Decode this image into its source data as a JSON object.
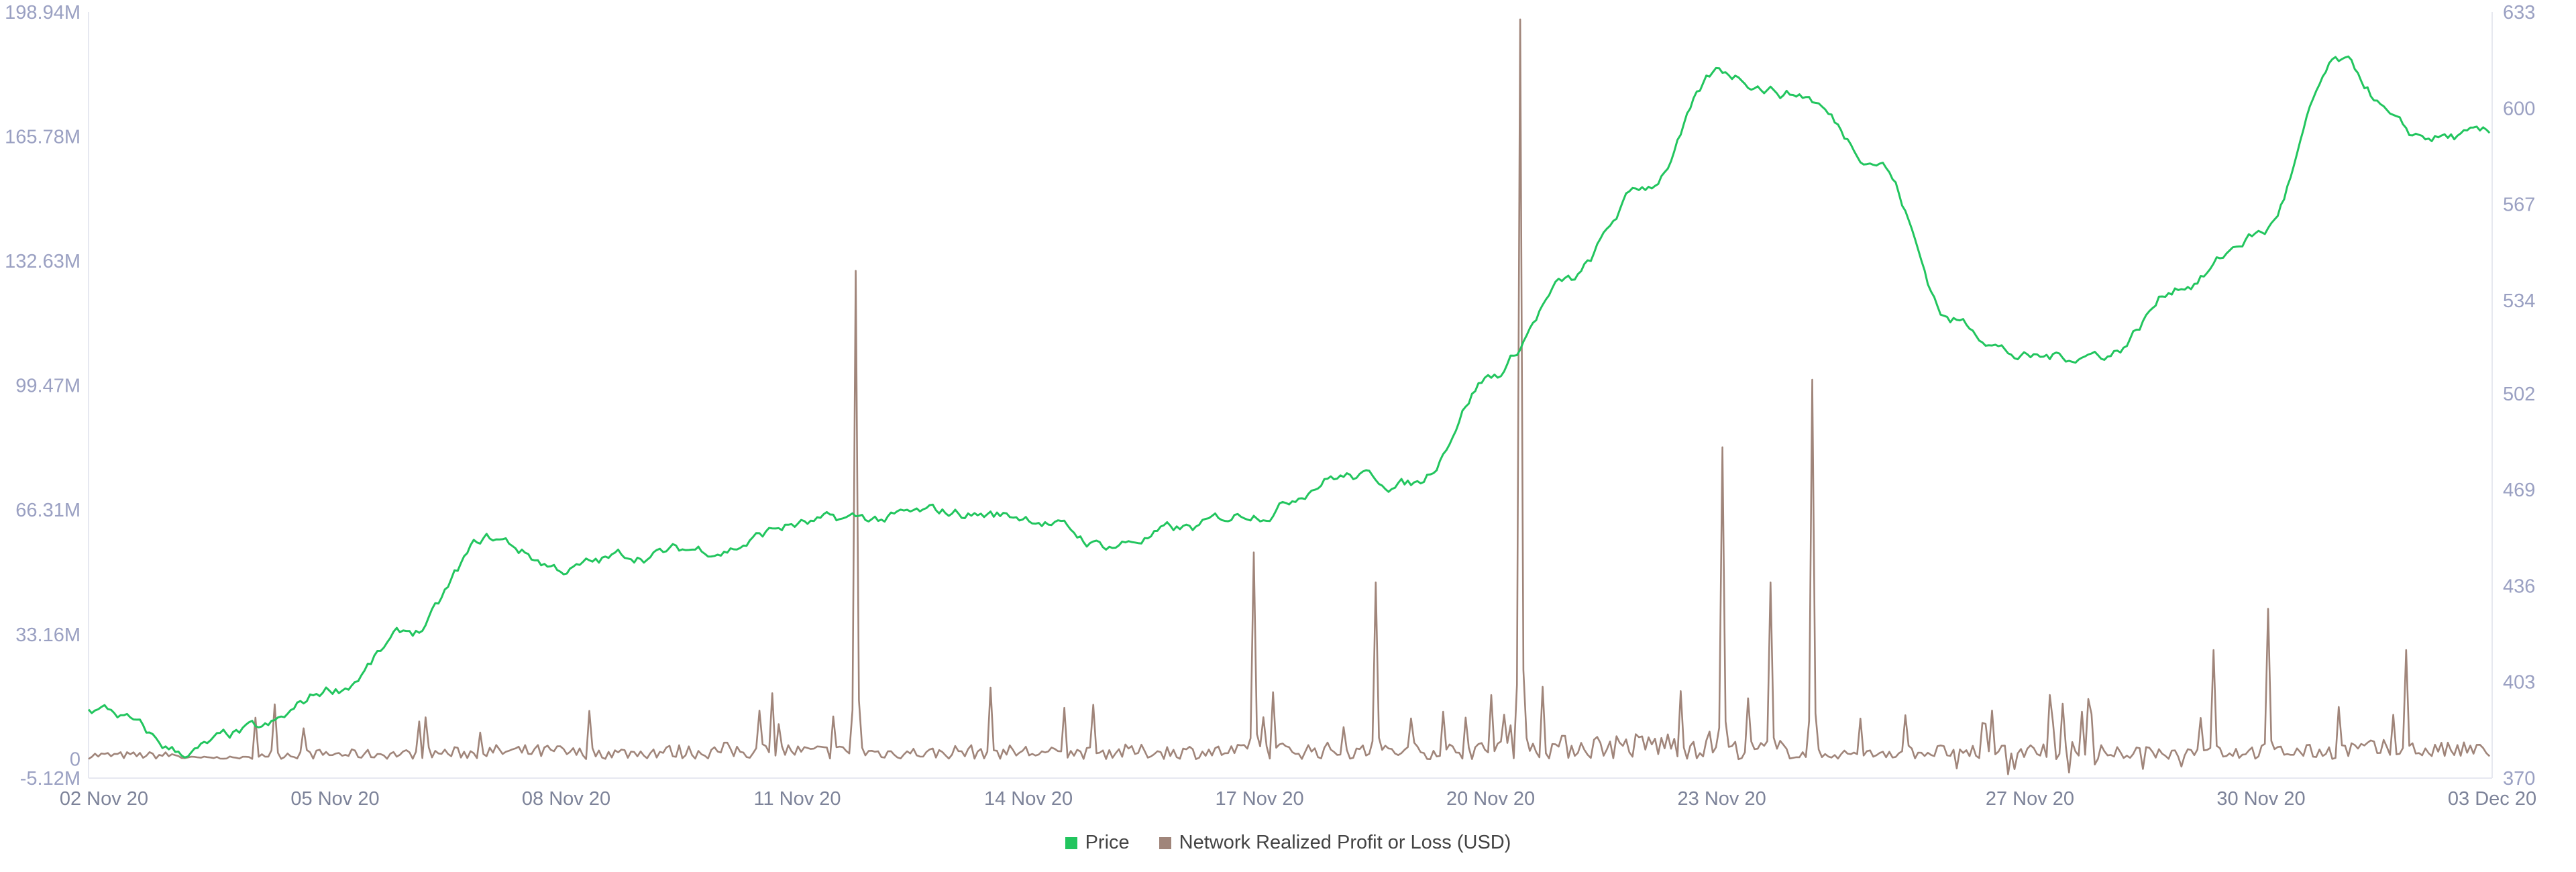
{
  "chart_data": {
    "type": "line",
    "x_tick_labels": [
      "02 Nov 20",
      "05 Nov 20",
      "08 Nov 20",
      "11 Nov 20",
      "14 Nov 20",
      "17 Nov 20",
      "20 Nov 20",
      "23 Nov 20",
      "27 Nov 20",
      "30 Nov 20",
      "03 Dec 20"
    ],
    "y_left": {
      "tick_labels": [
        "198.94M",
        "165.78M",
        "132.63M",
        "99.47M",
        "66.31M",
        "33.16M",
        "0",
        "-5.12M"
      ],
      "min": -5.12,
      "max": 198.94,
      "unit": "M"
    },
    "y_right": {
      "tick_labels": [
        "633",
        "600",
        "567",
        "534",
        "502",
        "469",
        "436",
        "403",
        "370"
      ],
      "min": 370,
      "max": 633
    },
    "legend_position": "bottom-center",
    "series": [
      {
        "name": "Price",
        "color": "#22c55e",
        "axis": "right",
        "points": [
          [
            "02 Nov 20",
            393
          ],
          [
            "03 Nov 20",
            379
          ],
          [
            "04 Nov 20",
            386
          ],
          [
            "05 Nov 20",
            401
          ],
          [
            "06 Nov 20",
            420
          ],
          [
            "07 Nov 20",
            452
          ],
          [
            "08 Nov 20",
            442
          ],
          [
            "09 Nov 20",
            447
          ],
          [
            "10 Nov 20",
            449
          ],
          [
            "11 Nov 20",
            457
          ],
          [
            "12 Nov 20",
            459
          ],
          [
            "13 Nov 20",
            461
          ],
          [
            "14 Nov 20",
            460
          ],
          [
            "15 Nov 20",
            450
          ],
          [
            "16 Nov 20",
            455
          ],
          [
            "17 Nov 20",
            462
          ],
          [
            "18 Nov 20",
            474
          ],
          [
            "19 Nov 20",
            471
          ],
          [
            "20 Nov 20",
            508
          ],
          [
            "21 Nov 20",
            540
          ],
          [
            "22 Nov 20",
            573
          ],
          [
            "23 Nov 20",
            612
          ],
          [
            "24 Nov 20",
            605
          ],
          [
            "25 Nov 20",
            583
          ],
          [
            "26 Nov 20",
            527
          ],
          [
            "27 Nov 20",
            514
          ],
          [
            "28 Nov 20",
            516
          ],
          [
            "29 Nov 20",
            540
          ],
          [
            "30 Nov 20",
            557
          ],
          [
            "01 Dec 20",
            615
          ],
          [
            "02 Dec 20",
            590
          ]
        ]
      },
      {
        "name": "Network Realized Profit or Loss (USD)",
        "color": "#a0857a",
        "axis": "left",
        "base_values_m": [
          1.5,
          0.5,
          2,
          2,
          2.5,
          3,
          2.5,
          3,
          3.5,
          3,
          2.5,
          3,
          2.5,
          3,
          3,
          3.5,
          3,
          3.5,
          5,
          5.5,
          6,
          4,
          2,
          3,
          3,
          3.5,
          2.5,
          3,
          3,
          4,
          3.5
        ],
        "spikes": [
          [
            "11 Nov 20 18:00",
            130
          ],
          [
            "20 Nov 20 09:00",
            197
          ],
          [
            "24 Nov 20 04:00",
            101
          ],
          [
            "23 Nov 20 00:00",
            83
          ],
          [
            "23 Nov 20 15:00",
            47
          ],
          [
            "16 Nov 20 22:00",
            55
          ],
          [
            "18 Nov 20 12:00",
            47
          ],
          [
            "30 Nov 20 02:00",
            40
          ],
          [
            "01 Dec 20 21:00",
            29
          ],
          [
            "29 Nov 20 09:00",
            29
          ],
          [
            "13 Nov 20 12:00",
            19
          ],
          [
            "20 Nov 20 00:00",
            17
          ]
        ]
      }
    ]
  }
}
